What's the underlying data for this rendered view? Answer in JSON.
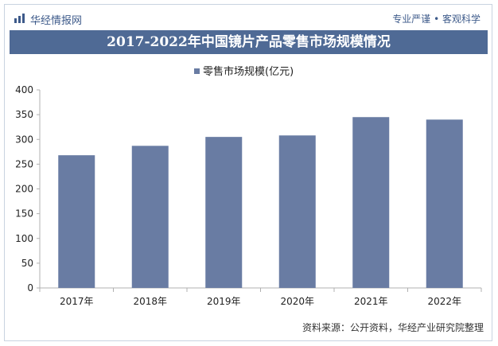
{
  "header": {
    "brand": "华经情报网",
    "slogan": "专业严谨 • 客观科学"
  },
  "footer": {
    "source": "资料来源：公开资料，华经产业研究院整理"
  },
  "colors": {
    "bar": "#697ca3",
    "title_bg": "#4f6a95",
    "axis": "#b0b0b0"
  },
  "chart_data": {
    "type": "bar",
    "title": "2017-2022年中国镜片产品零售市场规模情况",
    "categories": [
      "2017年",
      "2018年",
      "2019年",
      "2020年",
      "2021年",
      "2022年"
    ],
    "series": [
      {
        "name": "零售市场规模(亿元)",
        "values": [
          268,
          287,
          305,
          308,
          345,
          340
        ]
      }
    ],
    "xlabel": "",
    "ylabel": "",
    "ylim": [
      0,
      400
    ],
    "yticks": [
      0,
      50,
      100,
      150,
      200,
      250,
      300,
      350,
      400
    ],
    "grid": false,
    "legend": "top-center"
  }
}
